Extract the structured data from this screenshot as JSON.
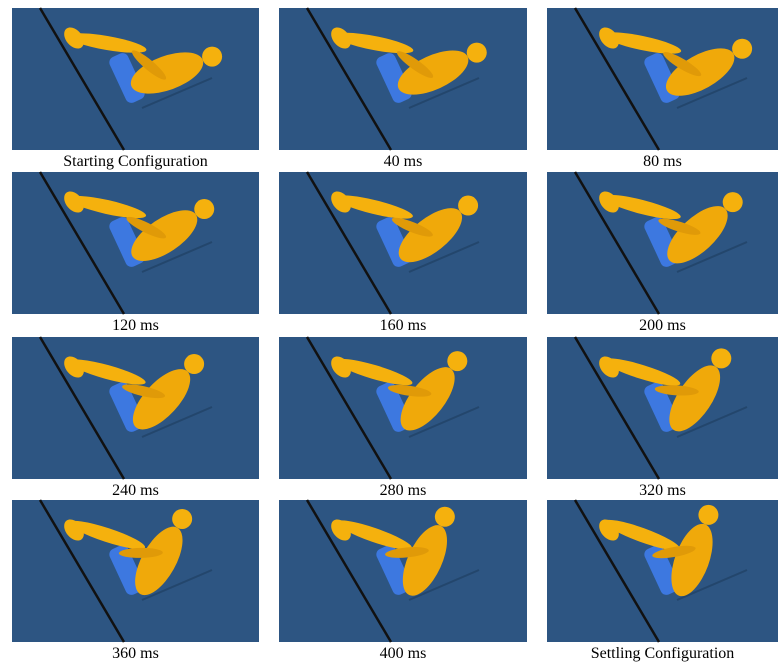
{
  "panels": [
    {
      "caption": "Starting Configuration"
    },
    {
      "caption": "40 ms"
    },
    {
      "caption": "80 ms"
    },
    {
      "caption": "120 ms"
    },
    {
      "caption": "160 ms"
    },
    {
      "caption": "200 ms"
    },
    {
      "caption": "240 ms"
    },
    {
      "caption": "280 ms"
    },
    {
      "caption": "320 ms"
    },
    {
      "caption": "360 ms"
    },
    {
      "caption": "400 ms"
    },
    {
      "caption": "Settling Configuration"
    }
  ]
}
